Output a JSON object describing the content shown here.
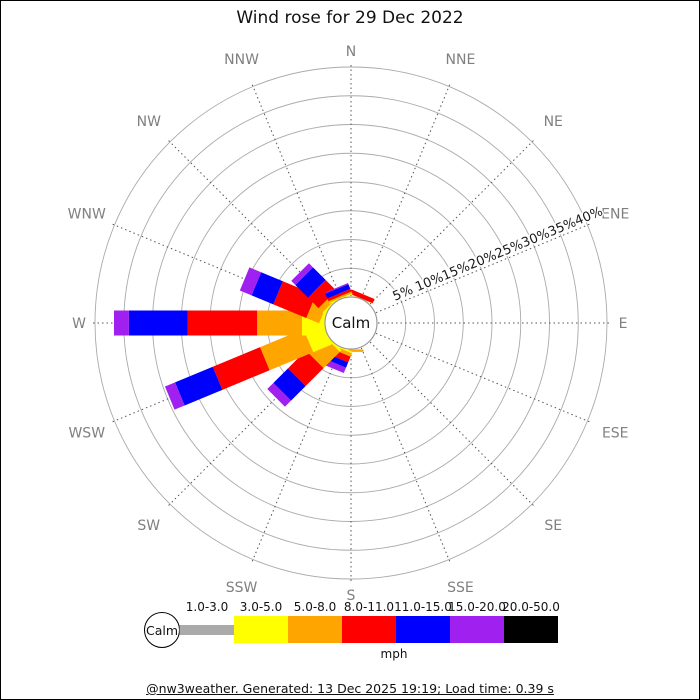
{
  "title": "Wind rose for 29 Dec 2022",
  "footer": {
    "text": "@nw3weather. Generated: 13 Dec 2025 19:19; Load time: 0.39 s"
  },
  "chart_data": {
    "type": "windrose",
    "title": "Wind rose for 29 Dec 2022",
    "calm_label": "Calm",
    "unit": "mph",
    "ring_percent_labels": [
      "5%",
      "10%",
      "15%",
      "20%",
      "25%",
      "30%",
      "35%",
      "40%"
    ],
    "ring_percents": [
      5,
      10,
      15,
      20,
      25,
      30,
      35,
      40
    ],
    "compass_labels": [
      "N",
      "NNE",
      "NE",
      "ENE",
      "E",
      "ESE",
      "SE",
      "SSE",
      "S",
      "SSW",
      "SW",
      "WSW",
      "W",
      "WNW",
      "NW",
      "NNW"
    ],
    "speed_bins": [
      {
        "label": "1.0-3.0",
        "color": "#aaaaaa"
      },
      {
        "label": "3.0-5.0",
        "color": "#ffff00"
      },
      {
        "label": "5.0-8.0",
        "color": "#ffa500"
      },
      {
        "label": "8.0-11.0",
        "color": "#ff0000"
      },
      {
        "label": "11.0-15.0",
        "color": "#0000ff"
      },
      {
        "label": "15.0-20.0",
        "color": "#a020f0"
      },
      {
        "label": "20.0-50.0",
        "color": "#000000"
      }
    ],
    "series": [
      {
        "dir": "N",
        "values": [
          0,
          0,
          0,
          0,
          0,
          0,
          0
        ]
      },
      {
        "dir": "NNE",
        "values": [
          0,
          0.05,
          0.05,
          0.8,
          0,
          0,
          0
        ]
      },
      {
        "dir": "NE",
        "values": [
          0,
          0,
          0,
          0,
          0,
          0,
          0
        ]
      },
      {
        "dir": "ENE",
        "values": [
          0,
          0,
          0,
          0,
          0,
          0,
          0
        ]
      },
      {
        "dir": "E",
        "values": [
          0,
          0,
          0,
          0,
          0,
          0,
          0
        ]
      },
      {
        "dir": "ESE",
        "values": [
          0,
          0,
          0,
          0,
          0,
          0,
          0
        ]
      },
      {
        "dir": "SE",
        "values": [
          0,
          0,
          0,
          0,
          0,
          0,
          0
        ]
      },
      {
        "dir": "SSE",
        "values": [
          0,
          0,
          0,
          0,
          0,
          0,
          0
        ]
      },
      {
        "dir": "S",
        "values": [
          0,
          0.1,
          0.4,
          0,
          0,
          0,
          0
        ]
      },
      {
        "dir": "SSW",
        "values": [
          0,
          0.3,
          0.6,
          1.1,
          1.0,
          1.0,
          0
        ]
      },
      {
        "dir": "SW",
        "values": [
          0,
          0.4,
          4.0,
          4.4,
          3.6,
          1.5,
          0
        ]
      },
      {
        "dir": "WSW",
        "values": [
          0,
          3.5,
          8.2,
          8.9,
          7.1,
          1.9,
          0
        ]
      },
      {
        "dir": "W",
        "values": [
          0,
          4.0,
          7.8,
          12.1,
          10.2,
          2.6,
          0
        ]
      },
      {
        "dir": "WNW",
        "values": [
          0,
          0.6,
          2.4,
          6.2,
          4.1,
          2.2,
          0
        ]
      },
      {
        "dir": "NW",
        "values": [
          0,
          0.3,
          1.0,
          2.6,
          3.1,
          1.0,
          0
        ]
      },
      {
        "dir": "NNW",
        "values": [
          0,
          0.2,
          0.3,
          0.5,
          0.9,
          0.2,
          0
        ]
      }
    ],
    "grid_color": "#aaaaaa",
    "spoke_color": "#555555",
    "compass_label_color": "#808080"
  }
}
